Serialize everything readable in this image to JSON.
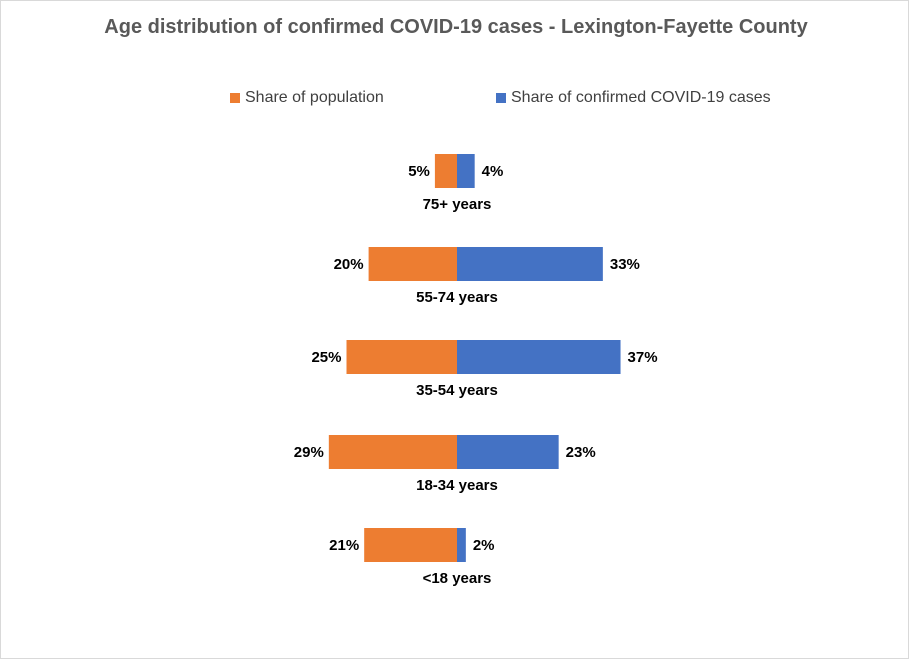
{
  "chart_data": {
    "type": "bar",
    "orientation": "diverging-horizontal",
    "title": "Age distribution of confirmed COVID-19 cases -  Lexington-Fayette County",
    "categories": [
      "75+ years",
      "55-74 years",
      "35-54 years",
      "18-34 years",
      "<18 years"
    ],
    "series": [
      {
        "name": "Share of population",
        "values": [
          5,
          20,
          25,
          29,
          21
        ],
        "labels": [
          "5%",
          "20%",
          "25%",
          "29%",
          "21%"
        ],
        "color": "#ed7d31",
        "side": "left"
      },
      {
        "name": "Share of confirmed COVID-19 cases",
        "values": [
          4,
          33,
          37,
          23,
          2
        ],
        "labels": [
          "4%",
          "33%",
          "37%",
          "23%",
          "2%"
        ],
        "color": "#4472c4",
        "side": "right"
      }
    ],
    "unit": "%",
    "legend_position": "top",
    "grid": false
  }
}
